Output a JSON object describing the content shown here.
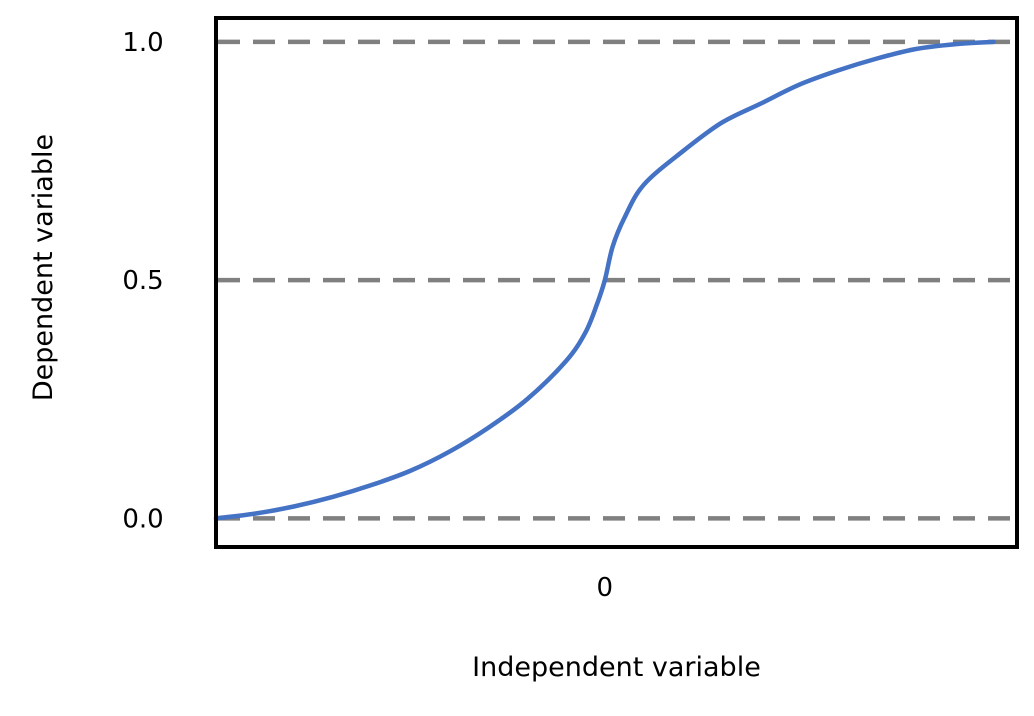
{
  "chart_data": {
    "type": "line",
    "title": "",
    "xlabel": "Independent variable",
    "ylabel": "Dependent variable",
    "x_ticks": [
      {
        "value": 0,
        "label": "0"
      }
    ],
    "y_ticks": [
      {
        "value": 0.0,
        "label": "0.0"
      },
      {
        "value": 0.5,
        "label": "0.5"
      },
      {
        "value": 1.0,
        "label": "1.0"
      }
    ],
    "xlim": [
      -1,
      1.06
    ],
    "ylim": [
      -0.06,
      1.05
    ],
    "reference_lines": [
      {
        "orientation": "horizontal",
        "y": 0.0,
        "style": "dashed",
        "color": "#808080"
      },
      {
        "orientation": "horizontal",
        "y": 0.5,
        "style": "dashed",
        "color": "#808080"
      },
      {
        "orientation": "horizontal",
        "y": 1.0,
        "style": "dashed",
        "color": "#808080"
      }
    ],
    "grid": false,
    "legend": "none",
    "series": [
      {
        "color": "#4472C4",
        "x": [
          -1.0,
          -0.9,
          -0.8,
          -0.7,
          -0.6,
          -0.5,
          -0.4,
          -0.3,
          -0.2,
          -0.1,
          -0.05,
          -0.02,
          0.0,
          0.02,
          0.05,
          0.1,
          0.2,
          0.3,
          0.4,
          0.5,
          0.6,
          0.7,
          0.8,
          0.9,
          1.0
        ],
        "y": [
          0.0,
          0.01,
          0.025,
          0.045,
          0.07,
          0.1,
          0.14,
          0.19,
          0.25,
          0.33,
          0.39,
          0.45,
          0.5,
          0.57,
          0.63,
          0.7,
          0.77,
          0.83,
          0.87,
          0.91,
          0.94,
          0.965,
          0.985,
          0.995,
          1.0
        ]
      }
    ]
  }
}
